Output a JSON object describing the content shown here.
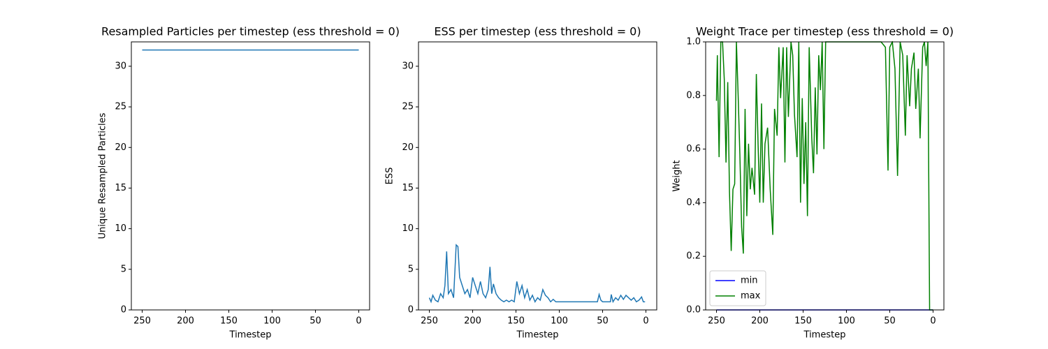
{
  "chart_data": [
    {
      "type": "line",
      "title": "Resampled Particles per timestep (ess threshold = 0)",
      "x_label": "Timestep",
      "y_label": "Unique Resampled Particles",
      "x": [
        250,
        0
      ],
      "series": [
        {
          "color": "#1f77b4",
          "values": [
            32,
            32
          ]
        }
      ],
      "xlim": [
        262.5,
        -12.5
      ],
      "xticks": [
        250,
        200,
        150,
        100,
        50,
        0
      ],
      "ylim": [
        0,
        33
      ],
      "yticks": [
        0,
        5,
        10,
        15,
        20,
        25,
        30
      ]
    },
    {
      "type": "line",
      "title": "ESS per timestep (ess threshold = 0)",
      "x_label": "Timestep",
      "y_label": "ESS",
      "x": [
        250,
        248,
        246,
        243,
        240,
        237,
        234,
        232,
        230,
        228,
        225,
        222,
        219,
        217,
        215,
        212,
        209,
        206,
        203,
        200,
        197,
        194,
        191,
        188,
        185,
        182,
        180,
        178,
        176,
        173,
        170,
        167,
        164,
        161,
        158,
        155,
        152,
        149,
        146,
        143,
        140,
        137,
        134,
        131,
        128,
        125,
        122,
        119,
        116,
        113,
        110,
        107,
        104,
        90,
        70,
        56,
        54,
        52,
        50,
        45,
        41,
        40,
        38,
        35,
        32,
        29,
        26,
        23,
        20,
        17,
        14,
        11,
        8,
        5,
        3,
        1
      ],
      "series": [
        {
          "color": "#1f77b4",
          "values": [
            1.5,
            1.0,
            1.8,
            1.2,
            1.0,
            2.0,
            1.5,
            3.0,
            7.2,
            2.0,
            2.5,
            1.5,
            8.0,
            7.8,
            4.0,
            3.0,
            2.0,
            2.5,
            1.5,
            4.0,
            3.0,
            2.0,
            3.5,
            2.0,
            1.5,
            2.5,
            5.3,
            2.0,
            3.2,
            2.0,
            1.5,
            1.2,
            1.0,
            1.2,
            1.0,
            1.2,
            1.0,
            3.5,
            2.0,
            3.0,
            1.5,
            2.5,
            1.2,
            1.8,
            1.0,
            1.5,
            1.2,
            2.5,
            1.8,
            1.5,
            1.0,
            1.3,
            1.0,
            1.0,
            1.0,
            1.0,
            1.9,
            1.2,
            1.0,
            1.0,
            1.0,
            1.9,
            1.0,
            1.5,
            1.2,
            1.8,
            1.3,
            1.8,
            1.5,
            1.2,
            1.5,
            1.0,
            1.2,
            1.6,
            1.0,
            1.0
          ]
        }
      ],
      "xlim": [
        262.5,
        -12.5
      ],
      "xticks": [
        250,
        200,
        150,
        100,
        50,
        0
      ],
      "ylim": [
        0,
        33
      ],
      "yticks": [
        0,
        5,
        10,
        15,
        20,
        25,
        30
      ]
    },
    {
      "type": "line",
      "title": "Weight Trace per timestep (ess threshold = 0)",
      "x_label": "Timestep",
      "y_label": "Weight",
      "x": [
        250,
        249,
        247,
        245,
        243,
        241,
        239,
        237,
        235,
        233,
        231,
        229,
        227,
        225,
        223,
        221,
        219,
        217,
        215,
        213,
        211,
        209,
        206,
        204,
        202,
        200,
        198,
        196,
        194,
        191,
        188,
        185,
        183,
        180,
        178,
        176,
        173,
        171,
        169,
        167,
        164,
        162,
        160,
        157,
        155,
        153,
        151,
        149,
        147,
        145,
        143,
        140,
        138,
        136,
        134,
        132,
        130,
        128,
        126,
        124,
        122,
        120,
        100,
        60,
        55,
        52,
        50,
        47,
        44,
        41,
        38,
        35,
        32,
        30,
        27,
        25,
        22,
        20,
        17,
        15,
        12,
        10,
        8,
        6,
        4,
        2,
        0
      ],
      "series": [
        {
          "name": "min",
          "color": "#0000ff",
          "values": [
            0,
            0,
            0,
            0,
            0,
            0,
            0,
            0,
            0,
            0,
            0,
            0,
            0,
            0,
            0,
            0,
            0,
            0,
            0,
            0,
            0,
            0,
            0,
            0,
            0,
            0,
            0,
            0,
            0,
            0,
            0,
            0,
            0,
            0,
            0,
            0,
            0,
            0,
            0,
            0,
            0,
            0,
            0,
            0,
            0,
            0,
            0,
            0,
            0,
            0,
            0,
            0,
            0,
            0,
            0,
            0,
            0,
            0,
            0,
            0,
            0,
            0,
            0,
            0,
            0,
            0,
            0,
            0,
            0,
            0,
            0,
            0,
            0,
            0,
            0,
            0,
            0,
            0,
            0,
            0,
            0,
            0,
            0,
            0,
            0,
            0,
            0
          ]
        },
        {
          "name": "max",
          "color": "#008000",
          "values": [
            0.78,
            0.95,
            0.57,
            1.0,
            1.0,
            0.86,
            0.55,
            0.85,
            0.44,
            0.22,
            0.45,
            0.47,
            1.0,
            0.8,
            0.58,
            0.31,
            0.21,
            0.75,
            0.35,
            0.62,
            0.45,
            0.53,
            0.43,
            0.88,
            0.62,
            0.4,
            0.77,
            0.4,
            0.62,
            0.68,
            0.45,
            0.28,
            0.75,
            0.65,
            0.98,
            0.79,
            0.98,
            0.55,
            0.98,
            0.72,
            1.0,
            0.95,
            0.73,
            0.57,
            1.0,
            0.4,
            0.79,
            0.47,
            0.7,
            0.35,
            0.98,
            0.64,
            0.51,
            0.83,
            0.58,
            0.95,
            0.82,
            1.0,
            0.6,
            1.0,
            1.0,
            1.0,
            1.0,
            1.0,
            0.98,
            0.52,
            0.98,
            1.0,
            0.9,
            0.5,
            1.0,
            0.95,
            0.65,
            0.95,
            0.76,
            0.9,
            0.96,
            0.75,
            0.9,
            0.64,
            0.98,
            1.0,
            0.91,
            1.0,
            0.0,
            0.0,
            0.0
          ]
        }
      ],
      "xlim": [
        262.5,
        -12.5
      ],
      "xticks": [
        250,
        200,
        150,
        100,
        50,
        0
      ],
      "ylim": [
        0,
        1
      ],
      "yticks": [
        {
          "value": 0,
          "label": "0.0"
        },
        {
          "value": 0.2,
          "label": "0.2"
        },
        {
          "value": 0.4,
          "label": "0.4"
        },
        {
          "value": 0.6,
          "label": "0.6"
        },
        {
          "value": 0.8,
          "label": "0.8"
        },
        {
          "value": 1,
          "label": "1.0"
        }
      ],
      "legend": "lower left"
    }
  ]
}
